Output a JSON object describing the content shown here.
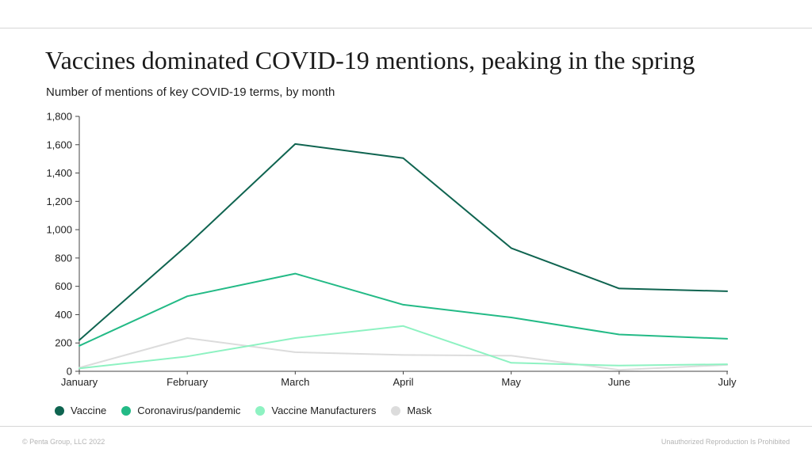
{
  "header": {
    "title": "Vaccines dominated COVID-19 mentions, peaking in the spring",
    "subtitle": "Number of mentions of key COVID-19 terms, by month"
  },
  "footer": {
    "left": "© Penta Group, LLC 2022",
    "right": "Unauthorized Reproduction Is Prohibited"
  },
  "chart_data": {
    "type": "line",
    "title": "Vaccines dominated COVID-19 mentions, peaking in the spring",
    "subtitle": "Number of mentions of key COVID-19 terms, by month",
    "xlabel": "",
    "ylabel": "",
    "categories": [
      "January",
      "February",
      "March",
      "April",
      "May",
      "June",
      "July"
    ],
    "ylim": [
      0,
      1800
    ],
    "yticks": [
      0,
      200,
      400,
      600,
      800,
      1000,
      1200,
      1400,
      1600,
      1800
    ],
    "ytick_labels": [
      "0",
      "200",
      "400",
      "600",
      "800",
      "1,000",
      "1,200",
      "1,400",
      "1,600",
      "1,800"
    ],
    "grid": false,
    "legend_position": "bottom-left",
    "series": [
      {
        "name": "Vaccine",
        "color": "#0f6450",
        "values": [
          220,
          890,
          1605,
          1505,
          870,
          585,
          565
        ]
      },
      {
        "name": "Coronavirus/pandemic",
        "color": "#23ba86",
        "values": [
          180,
          530,
          690,
          470,
          380,
          260,
          230
        ]
      },
      {
        "name": "Vaccine Manufacturers",
        "color": "#8ef2c2",
        "values": [
          20,
          105,
          235,
          320,
          60,
          40,
          50
        ]
      },
      {
        "name": "Mask",
        "color": "#dcdcdc",
        "values": [
          25,
          235,
          135,
          115,
          110,
          10,
          45
        ]
      }
    ]
  }
}
